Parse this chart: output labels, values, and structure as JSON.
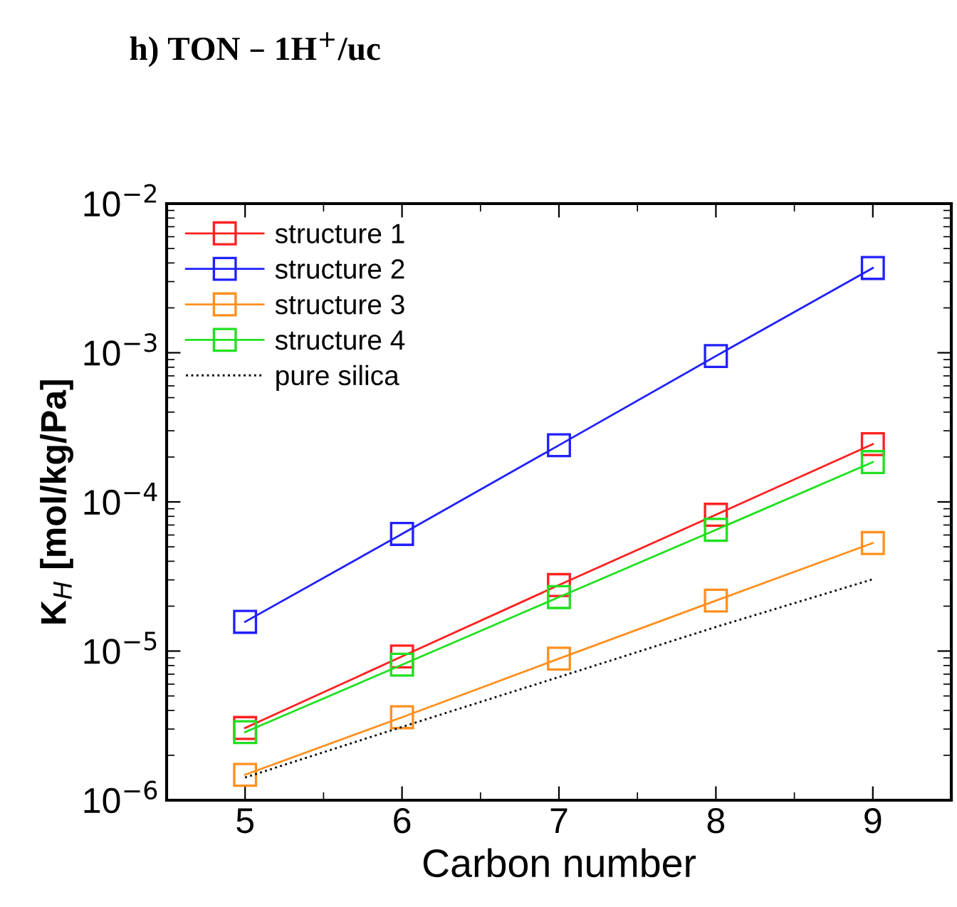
{
  "chart_data": {
    "type": "line",
    "title": "h) TON – 1H$^{+}$/uc",
    "xlabel": "Carbon number",
    "ylabel": "K$_{H}$ [mol/kg/Pa]",
    "x": [
      5,
      6,
      7,
      8,
      9
    ],
    "xlim": [
      4.5,
      9.5
    ],
    "xticks": [
      5,
      6,
      7,
      8,
      9
    ],
    "log": "y",
    "ylim": [
      1e-06,
      0.01
    ],
    "yticks": [
      {
        "value": 1e-06,
        "label": "10$^{−6}$"
      },
      {
        "value": 1e-05,
        "label": "10$^{−5}$"
      },
      {
        "value": 0.0001,
        "label": "10$^{−4}$"
      },
      {
        "value": 0.001,
        "label": "10$^{−3}$"
      },
      {
        "value": 0.01,
        "label": "10$^{−2}$"
      }
    ],
    "marker": "square",
    "legend": "top left",
    "grid": false,
    "series": [
      {
        "name": "structure 1",
        "color": "#ff2020",
        "values": [
          3.05e-06,
          9.2e-06,
          2.77e-05,
          8.2e-05,
          0.000244
        ]
      },
      {
        "name": "structure 2",
        "color": "#2020ff",
        "values": [
          1.57e-05,
          6.1e-05,
          0.00024,
          0.00095,
          0.0037
        ]
      },
      {
        "name": "structure 3",
        "color": "#ff9020",
        "values": [
          1.48e-06,
          3.6e-06,
          8.9e-06,
          2.18e-05,
          5.3e-05
        ]
      },
      {
        "name": "structure 4",
        "color": "#20e020",
        "values": [
          2.86e-06,
          8.1e-06,
          2.3e-05,
          6.5e-05,
          0.000185
        ]
      },
      {
        "name": "pure silica",
        "color": "#000000",
        "values": [
          1.42e-06,
          3.1e-06,
          6.7e-06,
          1.45e-05,
          3.03e-05
        ],
        "marker": "none",
        "line_style": "dotted"
      }
    ]
  }
}
